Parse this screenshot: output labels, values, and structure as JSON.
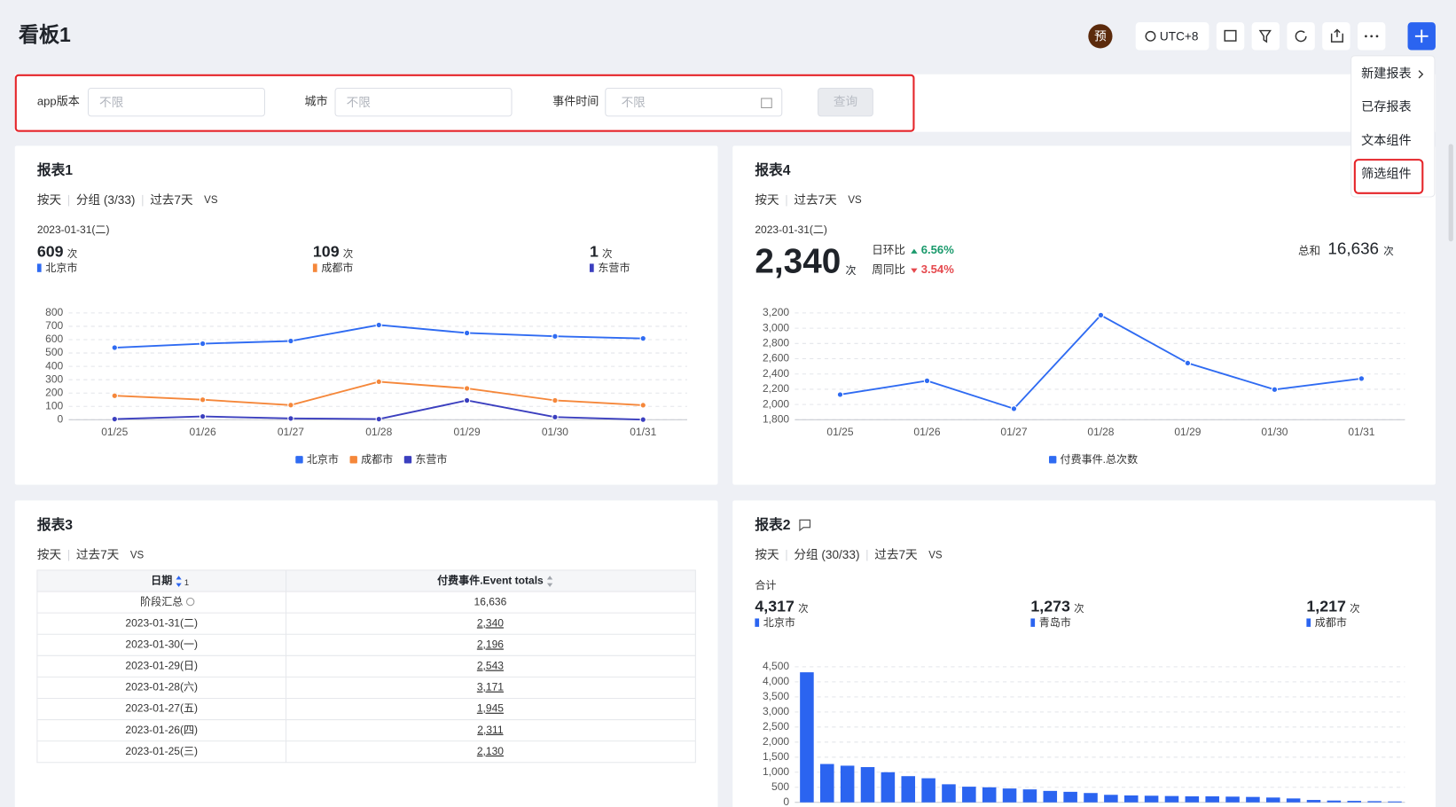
{
  "header": {
    "title": "看板1",
    "avatar": "预",
    "timezone": "UTC+8"
  },
  "filters": {
    "items": [
      {
        "label": "app版本",
        "placeholder": "不限"
      },
      {
        "label": "城市",
        "placeholder": "不限"
      },
      {
        "label": "事件时间",
        "placeholder": "不限"
      }
    ],
    "button": "查询"
  },
  "menu": {
    "items": [
      "新建报表",
      "已存报表",
      "文本组件",
      "筛选组件"
    ]
  },
  "panels": [
    {
      "title": "报表1",
      "tags": [
        "按天",
        "分组 (3/33)",
        "过去7天",
        "VS"
      ],
      "date": "2023-01-31(二)",
      "kpis": [
        {
          "value": "609",
          "unit": "次",
          "name": "北京市"
        },
        {
          "value": "109",
          "unit": "次",
          "name": "成都市"
        },
        {
          "value": "1",
          "unit": "次",
          "name": "东营市"
        }
      ],
      "chart_data": {
        "type": "line",
        "categories": [
          "01/25",
          "01/26",
          "01/27",
          "01/28",
          "01/29",
          "01/30",
          "01/31"
        ],
        "series": [
          {
            "name": "北京市",
            "color": "#2f6bf2",
            "values": [
              540,
              570,
              590,
              710,
              650,
              625,
              609
            ]
          },
          {
            "name": "成都市",
            "color": "#f5873a",
            "values": [
              180,
              150,
              110,
              285,
              235,
              145,
              109
            ]
          },
          {
            "name": "东营市",
            "color": "#3b3fbf",
            "values": [
              5,
              25,
              10,
              5,
              145,
              20,
              1
            ]
          }
        ],
        "ylim": [
          0,
          800
        ],
        "yticks": [
          0,
          100,
          200,
          300,
          400,
          500,
          600,
          700,
          800
        ],
        "grid": true
      }
    },
    {
      "title": "报表4",
      "tags": [
        "按天",
        "过去7天",
        "VS"
      ],
      "date": "2023-01-31(二)",
      "main": {
        "value": "2,340",
        "unit": "次"
      },
      "compare": [
        {
          "label": "日环比",
          "value": "6.56%",
          "dir": "up"
        },
        {
          "label": "周同比",
          "value": "3.54%",
          "dir": "down"
        }
      ],
      "total": {
        "label": "总和",
        "value": "16,636",
        "unit": "次"
      },
      "chart_data": {
        "type": "line",
        "categories": [
          "01/25",
          "01/26",
          "01/27",
          "01/28",
          "01/29",
          "01/30",
          "01/31"
        ],
        "series": [
          {
            "name": "付费事件.总次数",
            "color": "#2f6bf2",
            "values": [
              2130,
              2311,
              1945,
              3171,
              2543,
              2196,
              2340
            ]
          }
        ],
        "ylim": [
          1800,
          3200
        ],
        "yticks": [
          {
            "value": 1800,
            "label": "1,800"
          },
          {
            "value": 2000,
            "label": "2,000"
          },
          {
            "value": 2200,
            "label": "2,200"
          },
          {
            "value": 2400,
            "label": "2,400"
          },
          {
            "value": 2600,
            "label": "2,600"
          },
          {
            "value": 2800,
            "label": "2,800"
          },
          {
            "value": 3000,
            "label": "3,000"
          },
          {
            "value": 3200,
            "label": "3,200"
          }
        ],
        "grid": true
      }
    },
    {
      "title": "报表3",
      "tags": [
        "按天",
        "过去7天",
        "VS"
      ],
      "table": {
        "columns": [
          "日期",
          "付费事件.Event totals"
        ],
        "sort_index": "1",
        "rows": [
          [
            "阶段汇总",
            "16,636"
          ],
          [
            "2023-01-31(二)",
            "2,340"
          ],
          [
            "2023-01-30(一)",
            "2,196"
          ],
          [
            "2023-01-29(日)",
            "2,543"
          ],
          [
            "2023-01-28(六)",
            "3,171"
          ],
          [
            "2023-01-27(五)",
            "1,945"
          ],
          [
            "2023-01-26(四)",
            "2,311"
          ],
          [
            "2023-01-25(三)",
            "2,130"
          ]
        ]
      }
    },
    {
      "title": "报表2",
      "tags": [
        "按天",
        "分组 (30/33)",
        "过去7天",
        "VS"
      ],
      "total_label": "合计",
      "kpis": [
        {
          "value": "4,317",
          "unit": "次",
          "name": "北京市"
        },
        {
          "value": "1,273",
          "unit": "次",
          "name": "青岛市"
        },
        {
          "value": "1,217",
          "unit": "次",
          "name": "成都市"
        }
      ],
      "chart_data": {
        "type": "bar",
        "color": "#2b64f0",
        "categories": [
          null,
          null,
          null,
          null,
          null,
          null,
          null,
          null,
          null,
          null,
          null,
          null,
          null,
          null,
          null,
          null,
          null,
          null,
          null,
          null,
          null,
          null,
          null,
          null,
          null,
          null,
          null,
          null,
          null,
          null
        ],
        "values": [
          4317,
          1273,
          1217,
          1170,
          1000,
          870,
          800,
          600,
          520,
          500,
          460,
          430,
          380,
          350,
          310,
          250,
          230,
          220,
          210,
          200,
          200,
          190,
          180,
          160,
          130,
          80,
          60,
          50,
          40,
          30
        ],
        "ylim": [
          0,
          4500
        ],
        "yticks": [
          0,
          500,
          {
            "value": 1000,
            "label": "1,000"
          },
          {
            "value": 1500,
            "label": "1,500"
          },
          {
            "value": 2000,
            "label": "2,000"
          },
          {
            "value": 2500,
            "label": "2,500"
          },
          {
            "value": 3000,
            "label": "3,000"
          },
          {
            "value": 3500,
            "label": "3,500"
          },
          {
            "value": 4000,
            "label": "4,000"
          },
          {
            "value": 4500,
            "label": "4,500"
          }
        ],
        "grid": true
      }
    }
  ]
}
